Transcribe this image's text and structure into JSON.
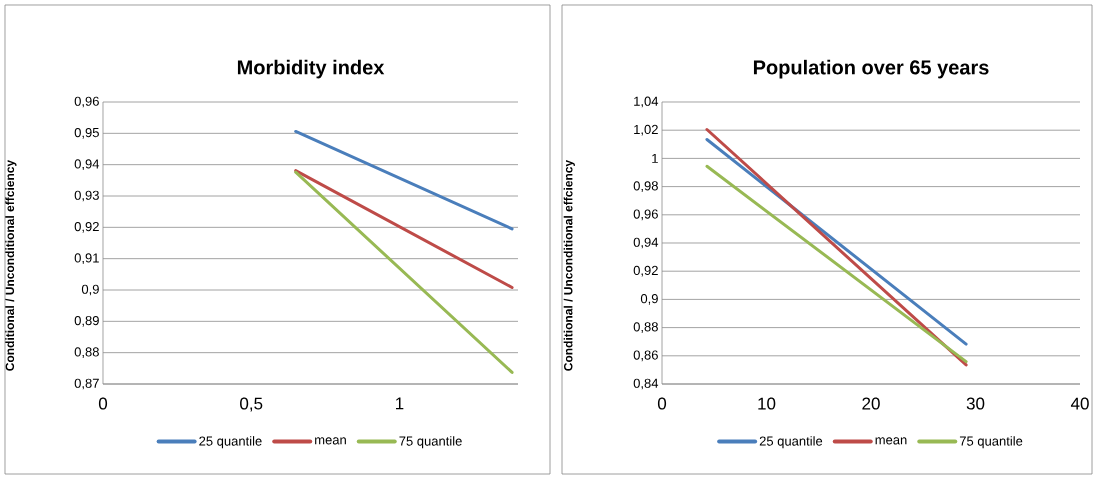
{
  "chart_data": [
    {
      "type": "line",
      "title": "Morbidity index",
      "ylabel": "Conditional / Unconditional effciency",
      "xlim": [
        0,
        1.4
      ],
      "xticks": [
        0,
        {
          "value": 0.5,
          "label": "0,5"
        },
        1
      ],
      "ylim": [
        0.87,
        0.96
      ],
      "yticks": [
        {
          "value": 0.87,
          "label": "0,87"
        },
        {
          "value": 0.88,
          "label": "0,88"
        },
        {
          "value": 0.89,
          "label": "0,89"
        },
        {
          "value": 0.9,
          "label": "0,9"
        },
        {
          "value": 0.91,
          "label": "0,91"
        },
        {
          "value": 0.92,
          "label": "0,92"
        },
        {
          "value": 0.93,
          "label": "0,93"
        },
        {
          "value": 0.94,
          "label": "0,94"
        },
        {
          "value": 0.95,
          "label": "0,95"
        },
        {
          "value": 0.96,
          "label": "0,96"
        }
      ],
      "grid": "y",
      "legend": "bottom",
      "marker": "none",
      "series": [
        {
          "name": "25 quantile",
          "color": "#4a7ebb",
          "x": [
            0.65,
            1.38
          ],
          "values": [
            0.9506,
            0.9195
          ]
        },
        {
          "name": "mean",
          "color": "#be4b48",
          "x": [
            0.65,
            1.38
          ],
          "values": [
            0.9381,
            0.9008
          ]
        },
        {
          "name": "75 quantile",
          "color": "#98b954",
          "x": [
            0.65,
            1.38
          ],
          "values": [
            0.9376,
            0.8737
          ]
        }
      ]
    },
    {
      "type": "line",
      "title": "Population over 65 years",
      "ylabel": "Conditional / Unconditional effciency",
      "xlim": [
        0,
        40
      ],
      "xticks": [
        0,
        10,
        20,
        30,
        40
      ],
      "ylim": [
        0.84,
        1.04
      ],
      "yticks": [
        {
          "value": 0.84,
          "label": "0,84"
        },
        {
          "value": 0.86,
          "label": "0,86"
        },
        {
          "value": 0.88,
          "label": "0,88"
        },
        {
          "value": 0.9,
          "label": "0,9"
        },
        {
          "value": 0.92,
          "label": "0,92"
        },
        {
          "value": 0.94,
          "label": "0,94"
        },
        {
          "value": 0.96,
          "label": "0,96"
        },
        {
          "value": 0.98,
          "label": "0,98"
        },
        1,
        {
          "value": 1.02,
          "label": "1,02"
        },
        {
          "value": 1.04,
          "label": "1,04"
        }
      ],
      "grid": "y",
      "legend": "bottom",
      "marker": "none",
      "series": [
        {
          "name": "25 quantile",
          "color": "#4a7ebb",
          "x": [
            4.3,
            29.1
          ],
          "values": [
            1.0134,
            0.8683
          ]
        },
        {
          "name": "mean",
          "color": "#be4b48",
          "x": [
            4.3,
            29.1
          ],
          "values": [
            1.0205,
            0.8535
          ]
        },
        {
          "name": "75 quantile",
          "color": "#98b954",
          "x": [
            4.3,
            29.1
          ],
          "values": [
            0.9944,
            0.8559
          ]
        }
      ]
    }
  ]
}
